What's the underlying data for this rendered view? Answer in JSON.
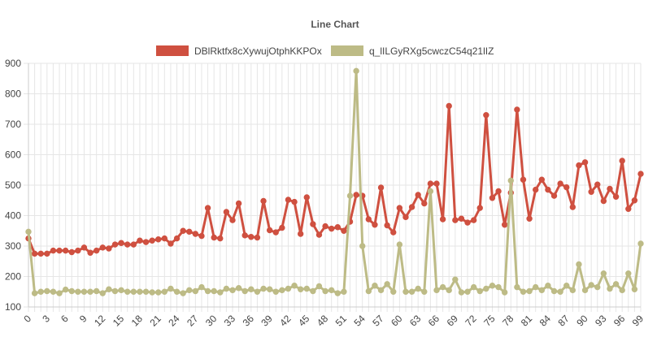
{
  "chart_data": {
    "type": "line",
    "title": "Line Chart",
    "xlabel": "",
    "ylabel": "",
    "ylim": [
      100,
      900
    ],
    "yticks": [
      100,
      200,
      300,
      400,
      500,
      600,
      700,
      800,
      900
    ],
    "x": [
      0,
      1,
      2,
      3,
      4,
      5,
      6,
      7,
      8,
      9,
      10,
      11,
      12,
      13,
      14,
      15,
      16,
      17,
      18,
      19,
      20,
      21,
      22,
      23,
      24,
      25,
      26,
      27,
      28,
      29,
      30,
      31,
      32,
      33,
      34,
      35,
      36,
      37,
      38,
      39,
      40,
      41,
      42,
      43,
      44,
      45,
      46,
      47,
      48,
      49,
      50,
      51,
      52,
      53,
      54,
      55,
      56,
      57,
      58,
      59,
      60,
      61,
      62,
      63,
      64,
      65,
      66,
      67,
      68,
      69,
      70,
      71,
      72,
      73,
      74,
      75,
      76,
      77,
      78,
      79,
      80,
      81,
      82,
      83,
      84,
      85,
      86,
      87,
      88,
      89,
      90,
      91,
      92,
      93,
      94,
      95,
      96,
      97,
      98,
      99
    ],
    "xtick_labels": [
      "0",
      "3",
      "6",
      "9",
      "12",
      "15",
      "18",
      "21",
      "24",
      "27",
      "30",
      "33",
      "36",
      "39",
      "42",
      "45",
      "48",
      "51",
      "54",
      "57",
      "60",
      "63",
      "66",
      "69",
      "72",
      "75",
      "78",
      "81",
      "84",
      "87",
      "90",
      "93",
      "96",
      "99"
    ],
    "grid": true,
    "legend_position": "top",
    "series": [
      {
        "name": "DBlRktfx8cXywujOtphKKPOx",
        "color": "#cf5040",
        "values": [
          325,
          275,
          275,
          275,
          285,
          285,
          285,
          280,
          285,
          295,
          278,
          285,
          295,
          292,
          305,
          310,
          305,
          305,
          318,
          313,
          318,
          322,
          325,
          308,
          325,
          350,
          347,
          340,
          333,
          425,
          328,
          325,
          412,
          385,
          440,
          335,
          330,
          328,
          448,
          352,
          345,
          360,
          452,
          445,
          340,
          460,
          372,
          337,
          365,
          357,
          362,
          350,
          380,
          468,
          465,
          388,
          370,
          492,
          368,
          345,
          425,
          395,
          428,
          468,
          440,
          505,
          505,
          388,
          760,
          385,
          390,
          377,
          385,
          425,
          730,
          458,
          480,
          370,
          475,
          748,
          518,
          390,
          485,
          518,
          485,
          465,
          505,
          493,
          428,
          565,
          575,
          478,
          502,
          448,
          488,
          462,
          580,
          422,
          450,
          537
        ]
      },
      {
        "name": "q_lILGyRXg5cwczC54q21lIZ",
        "color": "#bdbb86",
        "values": [
          347,
          145,
          150,
          152,
          150,
          145,
          157,
          152,
          150,
          150,
          150,
          152,
          145,
          158,
          152,
          155,
          150,
          150,
          150,
          150,
          148,
          148,
          150,
          160,
          150,
          145,
          155,
          152,
          165,
          152,
          152,
          148,
          160,
          155,
          162,
          152,
          158,
          150,
          160,
          158,
          150,
          155,
          160,
          170,
          158,
          160,
          152,
          168,
          152,
          155,
          145,
          150,
          465,
          875,
          300,
          152,
          170,
          155,
          175,
          150,
          305,
          150,
          150,
          160,
          150,
          480,
          155,
          165,
          155,
          190,
          148,
          150,
          165,
          152,
          160,
          170,
          165,
          148,
          515,
          165,
          150,
          152,
          165,
          155,
          170,
          152,
          150,
          170,
          155,
          240,
          155,
          172,
          165,
          210,
          160,
          175,
          155,
          210,
          158,
          308
        ]
      }
    ]
  }
}
